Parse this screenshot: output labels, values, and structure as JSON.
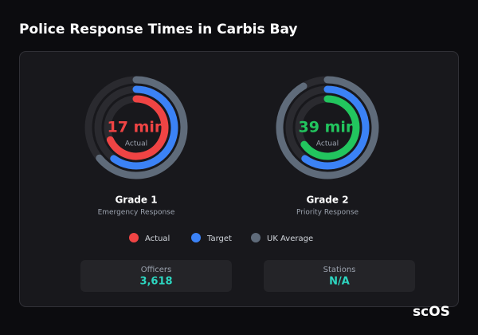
{
  "title": "Police Response Times in Carbis Bay",
  "gauges": [
    {
      "type": "radial-gauge",
      "title": "Grade 1",
      "subtitle": "Emergency Response",
      "center_label": "Actual",
      "range": [
        0,
        25
      ],
      "actual": 17,
      "actual_label": "17 min",
      "actual_color": "#ef4444",
      "target": 15,
      "uk_average": 16
    },
    {
      "type": "radial-gauge",
      "title": "Grade 2",
      "subtitle": "Priority Response",
      "center_label": "Actual",
      "range": [
        0,
        60
      ],
      "actual": 39,
      "actual_label": "39 min",
      "actual_color": "#22c55e",
      "target": 36,
      "uk_average": 55
    }
  ],
  "legend": [
    {
      "name": "Actual",
      "color": "#ef4444"
    },
    {
      "name": "Target",
      "color": "#3b82f6"
    },
    {
      "name": "UK Average",
      "color": "#5f6b7a"
    }
  ],
  "stats": [
    {
      "label": "Officers",
      "value": "3,618"
    },
    {
      "label": "Stations",
      "value": "N/A"
    }
  ],
  "brand": "scOS"
}
